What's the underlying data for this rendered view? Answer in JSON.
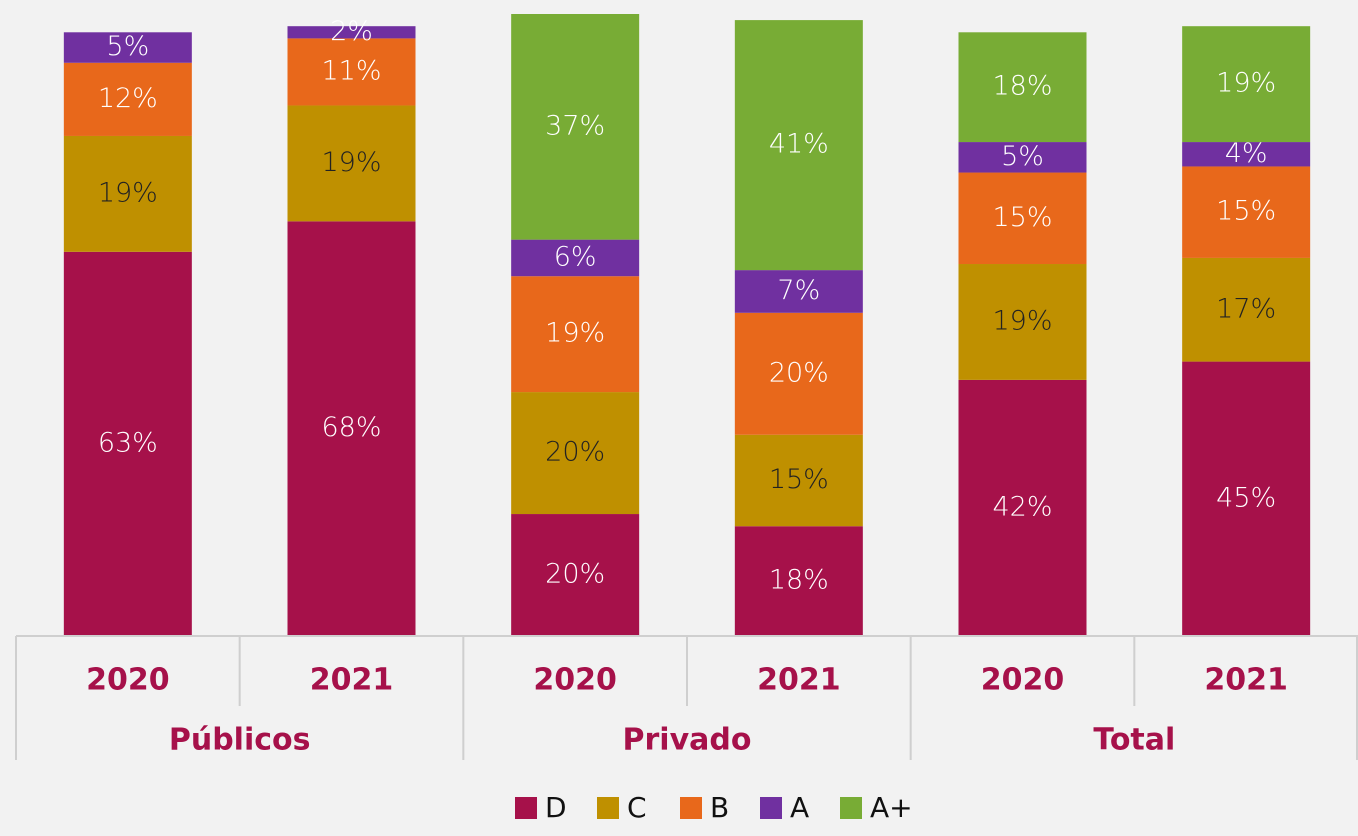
{
  "chart_data": {
    "type": "bar",
    "stacked": true,
    "categories": [
      "2020",
      "2021",
      "2020",
      "2021",
      "2020",
      "2021"
    ],
    "groups": [
      "Públicos",
      "Privado",
      "Total"
    ],
    "ylim": [
      0,
      102
    ],
    "legend": "bottom",
    "series": [
      {
        "name": "D",
        "color": "#a6114a",
        "values": [
          63,
          68,
          20,
          18,
          42,
          45
        ],
        "value_labels": [
          "63%",
          "68%",
          "20%",
          "18%",
          "42%",
          "45%"
        ]
      },
      {
        "name": "C",
        "color": "#bf9000",
        "values": [
          19,
          19,
          20,
          15,
          19,
          17
        ],
        "value_labels": [
          "19%",
          "19%",
          "20%",
          "15%",
          "19%",
          "17%"
        ]
      },
      {
        "name": "B",
        "color": "#e8681b",
        "values": [
          12,
          11,
          19,
          20,
          15,
          15
        ],
        "value_labels": [
          "12%",
          "11%",
          "19%",
          "20%",
          "15%",
          "15%"
        ]
      },
      {
        "name": "A",
        "color": "#7030a0",
        "values": [
          5,
          2,
          6,
          7,
          5,
          4
        ],
        "value_labels": [
          "5%",
          "2%",
          "6%",
          "7%",
          "5%",
          "4%"
        ]
      },
      {
        "name": "A+",
        "color": "#78ac35",
        "values": [
          null,
          null,
          37,
          41,
          18,
          19
        ],
        "value_labels": [
          null,
          null,
          "37%",
          "41%",
          "18%",
          "19%"
        ]
      }
    ]
  }
}
